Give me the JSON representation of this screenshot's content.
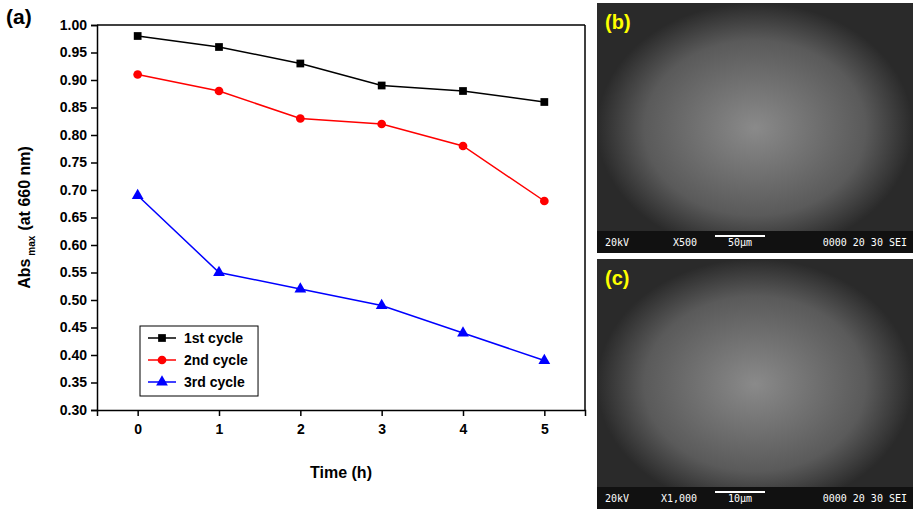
{
  "chart_data": {
    "type": "line",
    "panel_label": "(a)",
    "xlabel": "Time (h)",
    "ylabel": [
      "Abs",
      "max",
      "(at 660 nm)"
    ],
    "x": [
      0,
      1,
      2,
      3,
      4,
      5
    ],
    "series": [
      {
        "name": "1st cycle",
        "color": "#000000",
        "marker": "square",
        "line_style": "solid",
        "values": [
          0.98,
          0.96,
          0.93,
          0.89,
          0.88,
          0.86
        ]
      },
      {
        "name": "2nd cycle",
        "color": "#ff0000",
        "marker": "circle",
        "line_style": "solid",
        "values": [
          0.91,
          0.88,
          0.83,
          0.82,
          0.78,
          0.68
        ]
      },
      {
        "name": "3rd cycle",
        "color": "#0000ff",
        "marker": "triangle",
        "line_style": "solid",
        "values": [
          0.69,
          0.55,
          0.52,
          0.49,
          0.44,
          0.39
        ]
      }
    ],
    "xlim": [
      -0.5,
      5.5
    ],
    "xticks": [
      0,
      1,
      2,
      3,
      4,
      5
    ],
    "ylim": [
      0.3,
      1.0
    ],
    "yticks": [
      {
        "value": 0.3,
        "label": "0.30"
      },
      0.35,
      {
        "value": 0.4,
        "label": "0.40"
      },
      0.45,
      {
        "value": 0.5,
        "label": "0.50"
      },
      0.55,
      {
        "value": 0.6,
        "label": "0.60"
      },
      0.65,
      {
        "value": 0.7,
        "label": "0.70"
      },
      0.75,
      {
        "value": 0.8,
        "label": "0.80"
      },
      0.85,
      {
        "value": 0.9,
        "label": "0.90"
      },
      0.95,
      {
        "value": 1.0,
        "label": "1.00"
      }
    ],
    "legend": "lower left",
    "grid": false
  },
  "micrographs": [
    {
      "label": "(b)",
      "voltage": "20kV",
      "magnification": "X500",
      "scale_bar": "50μm",
      "info": "0000 20 30 SEI"
    },
    {
      "label": "(c)",
      "voltage": "20kV",
      "magnification": "X1,000",
      "scale_bar": "10μm",
      "info": "0000 20 30 SEI"
    }
  ]
}
